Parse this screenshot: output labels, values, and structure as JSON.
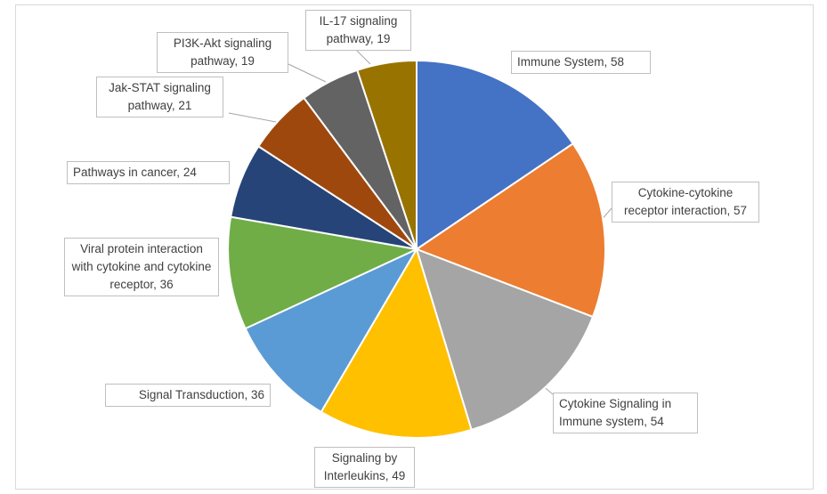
{
  "chart_data": {
    "type": "pie",
    "title": "",
    "labels": [
      "Immune System, 58",
      "Cytokine-cytokine receptor interaction, 57",
      "Cytokine Signaling in Immune system, 54",
      "Signaling by Interleukins, 49",
      "Signal Transduction, 36",
      "Viral protein interaction with cytokine and cytokine receptor, 36",
      "Pathways in cancer, 24",
      "Jak-STAT signaling pathway, 21",
      "PI3K-Akt signaling pathway, 19",
      "IL-17 signaling pathway, 19"
    ],
    "slices": [
      {
        "name": "Immune System",
        "value": 58,
        "color": "#4472c4"
      },
      {
        "name": "Cytokine-cytokine receptor interaction",
        "value": 57,
        "color": "#ed7d31"
      },
      {
        "name": "Cytokine Signaling in Immune system",
        "value": 54,
        "color": "#a5a5a5"
      },
      {
        "name": "Signaling by Interleukins",
        "value": 49,
        "color": "#ffc000"
      },
      {
        "name": "Signal Transduction",
        "value": 36,
        "color": "#5b9bd5"
      },
      {
        "name": "Viral protein interaction with cytokine and cytokine receptor",
        "value": 36,
        "color": "#70ad47"
      },
      {
        "name": "Pathways in cancer",
        "value": 24,
        "color": "#264478"
      },
      {
        "name": "Jak-STAT signaling pathway",
        "value": 21,
        "color": "#9e480e"
      },
      {
        "name": "PI3K-Akt signaling pathway",
        "value": 19,
        "color": "#636363"
      },
      {
        "name": "IL-17 signaling pathway",
        "value": 19,
        "color": "#997300"
      }
    ],
    "start_angle": "12 o'clock",
    "direction": "clockwise",
    "legend": "none",
    "data_labels": "callouts"
  }
}
